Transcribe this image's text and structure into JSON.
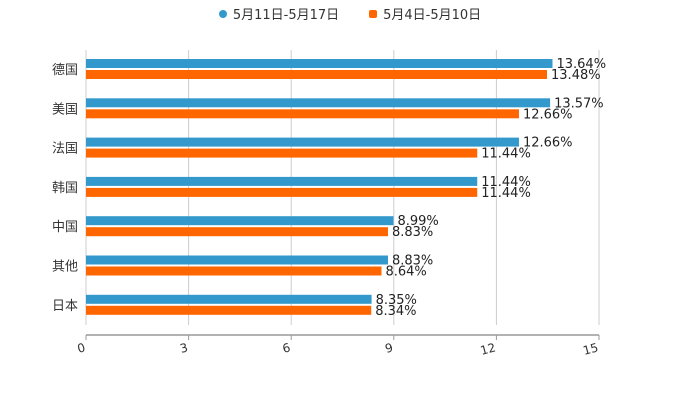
{
  "chart_data": {
    "type": "bar",
    "orientation": "horizontal",
    "title": "",
    "xlabel": "",
    "ylabel": "",
    "categories": [
      "德国",
      "美国",
      "法国",
      "韩国",
      "中国",
      "其他",
      "日本"
    ],
    "series": [
      {
        "name": "5月11日-5月17日",
        "color": "#3399cc",
        "values": [
          13.64,
          13.57,
          12.66,
          11.44,
          8.99,
          8.83,
          8.35
        ],
        "labels": [
          "13.64%",
          "13.57%",
          "12.66%",
          "11.44%",
          "8.99%",
          "8.83%",
          "8.35%"
        ]
      },
      {
        "name": "5月4日-5月10日",
        "color": "#ff6600",
        "values": [
          13.48,
          12.66,
          11.44,
          11.44,
          8.83,
          8.64,
          8.34
        ],
        "labels": [
          "13.48%",
          "12.66%",
          "11.44%",
          "11.44%",
          "8.83%",
          "8.64%",
          "8.34%"
        ]
      }
    ],
    "xlim": [
      0,
      15
    ],
    "xticks": [
      "0",
      "3",
      "6",
      "9",
      "12",
      "15"
    ],
    "grid": true,
    "legend_position": "top-center"
  }
}
